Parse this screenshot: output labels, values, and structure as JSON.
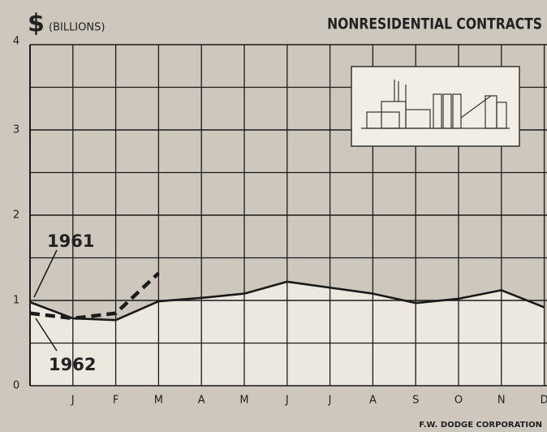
{
  "chart_data": {
    "type": "line",
    "title": "NONRESIDENTIAL CONTRACTS",
    "ylabel_symbol": "$",
    "ylabel": "(BILLIONS)",
    "source": "F.W. DODGE CORPORATION",
    "xlim": [
      0,
      12
    ],
    "xticks": [
      {
        "value": 1,
        "label": "J"
      },
      {
        "value": 2,
        "label": "F"
      },
      {
        "value": 3,
        "label": "M"
      },
      {
        "value": 4,
        "label": "A"
      },
      {
        "value": 5,
        "label": "M"
      },
      {
        "value": 6,
        "label": "J"
      },
      {
        "value": 7,
        "label": "J"
      },
      {
        "value": 8,
        "label": "A"
      },
      {
        "value": 9,
        "label": "S"
      },
      {
        "value": 10,
        "label": "O"
      },
      {
        "value": 11,
        "label": "N"
      },
      {
        "value": 12,
        "label": "D"
      }
    ],
    "ylim": [
      0,
      4
    ],
    "yticks": [
      0,
      1,
      2,
      3,
      4
    ],
    "yminorticks": [
      0.5,
      1.5,
      2.5,
      3.5
    ],
    "grid": true,
    "series": [
      {
        "name": "1961",
        "color": "#1a1a1a",
        "dashed": false,
        "fill": "#ece8e0",
        "x": [
          0,
          1,
          2,
          3,
          4,
          5,
          6,
          7,
          8,
          9,
          10,
          11,
          12
        ],
        "values": [
          0.98,
          0.79,
          0.77,
          0.99,
          1.03,
          1.08,
          1.22,
          1.15,
          1.08,
          0.97,
          1.02,
          1.12,
          0.92
        ]
      },
      {
        "name": "1962",
        "color": "#1a1a1a",
        "dashed": true,
        "x": [
          0,
          1,
          2,
          3
        ],
        "values": [
          0.85,
          0.79,
          0.85,
          1.32
        ]
      }
    ]
  }
}
